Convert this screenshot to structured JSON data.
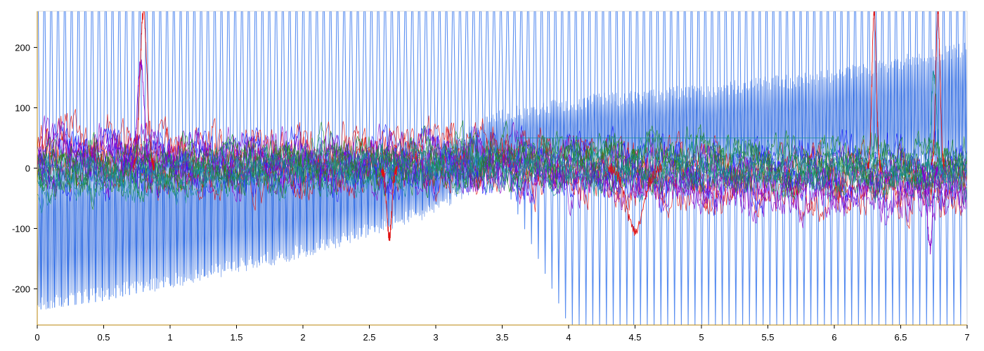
{
  "chart_data": {
    "type": "line",
    "title": "",
    "xlabel": "",
    "ylabel": "",
    "xlim": [
      0,
      7
    ],
    "ylim": [
      -260,
      260
    ],
    "x_ticks": [
      0,
      0.5,
      1,
      1.5,
      2,
      2.5,
      3,
      3.5,
      4,
      4.5,
      5,
      5.5,
      6,
      6.5,
      7
    ],
    "x_tick_labels": [
      "0",
      "0.5",
      "1",
      "1.5",
      "2",
      "2.5",
      "3",
      "3.5",
      "4",
      "4.5",
      "5",
      "5.5",
      "6",
      "6.5",
      "7"
    ],
    "y_ticks": [
      200,
      100,
      0,
      -100,
      -200
    ],
    "y_tick_labels": [
      "200",
      "100",
      "0",
      "-100",
      "-200"
    ],
    "grid": false,
    "legend": "none",
    "colors": {
      "axis": "#b8860b",
      "oscillation": "#5b8ff0",
      "oscillation_core": "#0b4fd8",
      "series_red": "#e01010",
      "series_blue": "#1a1aff",
      "series_purple": "#8a00c8",
      "series_green": "#1c8a1c",
      "series_teal": "#1a9090"
    },
    "oscillation": {
      "cycles_per_unit": 19.5,
      "envelope": [
        {
          "x": 0.0,
          "upper": 260,
          "lower": -235
        },
        {
          "x": 0.5,
          "upper": 260,
          "lower": -220
        },
        {
          "x": 1.0,
          "upper": 260,
          "lower": -195
        },
        {
          "x": 1.5,
          "upper": 260,
          "lower": -165
        },
        {
          "x": 2.0,
          "upper": 260,
          "lower": -140
        },
        {
          "x": 2.5,
          "upper": 260,
          "lower": -110
        },
        {
          "x": 3.0,
          "upper": 260,
          "lower": -60
        },
        {
          "x": 3.5,
          "upper": 260,
          "lower": -20
        },
        {
          "x": 4.0,
          "upper": 260,
          "lower": -260
        },
        {
          "x": 4.5,
          "upper": 260,
          "lower": -260
        },
        {
          "x": 5.0,
          "upper": 260,
          "lower": -260
        },
        {
          "x": 5.5,
          "upper": 260,
          "lower": -260
        },
        {
          "x": 6.0,
          "upper": 260,
          "lower": -260
        },
        {
          "x": 6.5,
          "upper": 260,
          "lower": -260
        },
        {
          "x": 7.0,
          "upper": 260,
          "lower": -260
        }
      ],
      "dense_band": [
        {
          "x": 0.0,
          "upper": 20,
          "lower": -240
        },
        {
          "x": 1.0,
          "upper": 30,
          "lower": -200
        },
        {
          "x": 2.0,
          "upper": 30,
          "lower": -150
        },
        {
          "x": 3.0,
          "upper": 40,
          "lower": -80
        },
        {
          "x": 3.5,
          "upper": 100,
          "lower": -10
        },
        {
          "x": 4.0,
          "upper": 120,
          "lower": 0
        },
        {
          "x": 5.0,
          "upper": 140,
          "lower": 0
        },
        {
          "x": 6.0,
          "upper": 165,
          "lower": 0
        },
        {
          "x": 7.0,
          "upper": 210,
          "lower": 0
        }
      ]
    },
    "series_bands": [
      {
        "color_key": "series_red",
        "center": [
          [
            0,
            30
          ],
          [
            1,
            15
          ],
          [
            2,
            10
          ],
          [
            3,
            20
          ],
          [
            3.5,
            15
          ],
          [
            4,
            0
          ],
          [
            5,
            -15
          ],
          [
            6,
            -20
          ],
          [
            7,
            -25
          ]
        ],
        "spread": 60
      },
      {
        "color_key": "series_blue",
        "center": [
          [
            0,
            15
          ],
          [
            1,
            10
          ],
          [
            2,
            5
          ],
          [
            3,
            5
          ],
          [
            4,
            0
          ],
          [
            5,
            -5
          ],
          [
            6,
            -5
          ],
          [
            7,
            -5
          ]
        ],
        "spread": 55
      },
      {
        "color_key": "series_purple",
        "center": [
          [
            0,
            20
          ],
          [
            1,
            10
          ],
          [
            2,
            10
          ],
          [
            3,
            10
          ],
          [
            4,
            -5
          ],
          [
            5,
            -25
          ],
          [
            6,
            -30
          ],
          [
            7,
            -35
          ]
        ],
        "spread": 55
      },
      {
        "color_key": "series_green",
        "center": [
          [
            0,
            -5
          ],
          [
            1,
            0
          ],
          [
            2,
            5
          ],
          [
            3,
            10
          ],
          [
            4,
            15
          ],
          [
            5,
            10
          ],
          [
            6,
            5
          ],
          [
            7,
            5
          ]
        ],
        "spread": 50
      },
      {
        "color_key": "series_teal",
        "center": [
          [
            0,
            -20
          ],
          [
            1,
            -10
          ],
          [
            2,
            0
          ],
          [
            3,
            5
          ],
          [
            4,
            0
          ],
          [
            5,
            0
          ],
          [
            6,
            -5
          ],
          [
            7,
            -10
          ]
        ],
        "spread": 45
      }
    ],
    "spikes": [
      {
        "color_key": "series_red",
        "x": 0.8,
        "peak": 260,
        "width": 0.08
      },
      {
        "color_key": "series_purple",
        "x": 0.78,
        "peak": 175,
        "width": 0.08
      },
      {
        "color_key": "series_red",
        "x": 6.3,
        "peak": 260,
        "width": 0.05
      },
      {
        "color_key": "series_red",
        "x": 6.78,
        "peak": 260,
        "width": 0.05
      },
      {
        "color_key": "series_teal",
        "x": 6.75,
        "peak": 160,
        "width": 0.06
      },
      {
        "color_key": "series_red",
        "x": 4.5,
        "peak": -105,
        "width": 0.2
      },
      {
        "color_key": "series_purple",
        "x": 6.72,
        "peak": -135,
        "width": 0.06
      },
      {
        "color_key": "series_red",
        "x": 2.65,
        "peak": -115,
        "width": 0.06
      }
    ],
    "reference_lines": [
      {
        "color_key": "series_teal",
        "x_start": 3.6,
        "x_end": 6.0,
        "y": 50
      }
    ]
  }
}
